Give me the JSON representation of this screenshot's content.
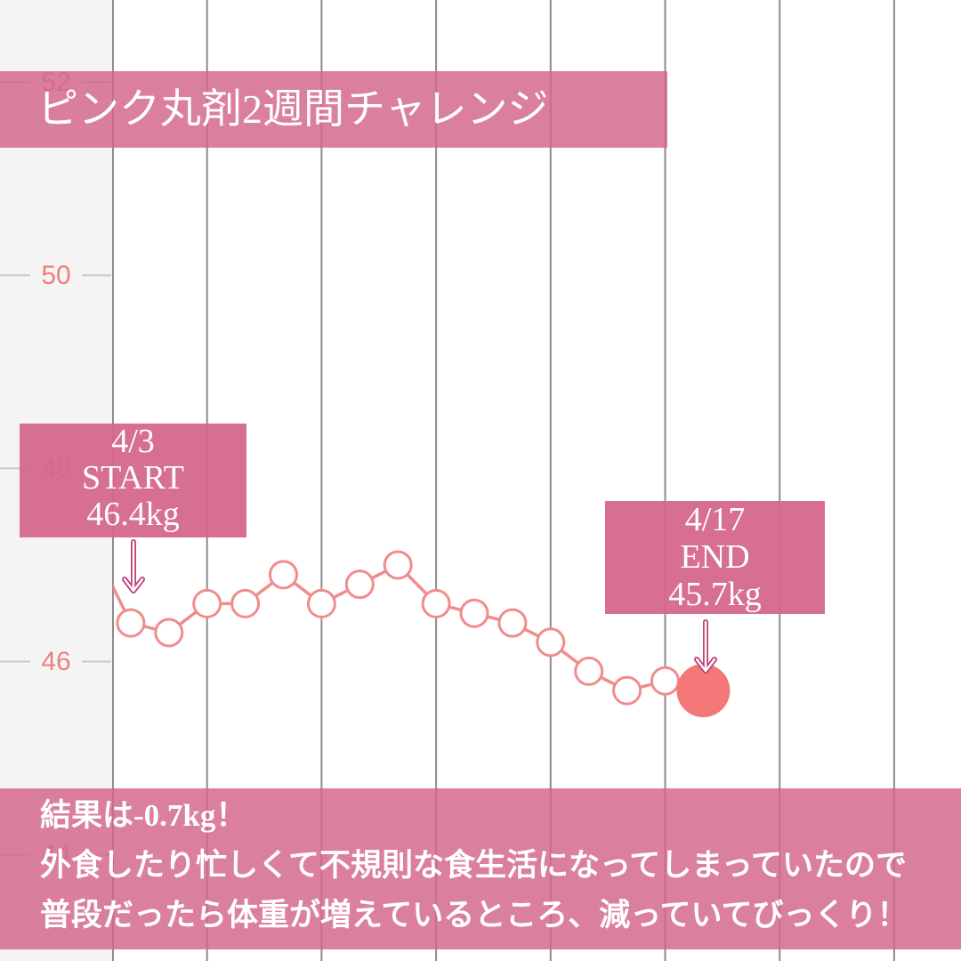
{
  "colors": {
    "series": "#f08c8c",
    "current_point": "#f47878",
    "tick_label": "#ef7f7f",
    "overlay": "#d4668b",
    "gridline": "#8c8c8c",
    "axis_panel": "#f4f4f4",
    "text": "#ffffff"
  },
  "chart_data": {
    "type": "line",
    "title": "ピンク丸剤2週間チャレンジ",
    "y_ticks": [
      44,
      46,
      48,
      50,
      52
    ],
    "ylim": [
      42.9,
      52.85
    ],
    "grid": "vertical",
    "values": [
      47.2,
      46.4,
      46.3,
      46.6,
      46.6,
      46.9,
      46.6,
      46.8,
      47.0,
      46.6,
      46.5,
      46.4,
      46.2,
      45.9,
      45.7,
      45.8,
      45.7
    ],
    "annotations": [
      {
        "date": "4/3",
        "label": "START",
        "weight": "46.4kg"
      },
      {
        "date": "4/17",
        "label": "END",
        "weight": "45.7kg"
      }
    ]
  },
  "summary": {
    "lines": [
      "結果は-0.7kg！",
      "外食したり忙しくて不規則な食生活になってしまっていたので",
      "普段だったら体重が増えているところ、減っていてびっくり！"
    ]
  }
}
